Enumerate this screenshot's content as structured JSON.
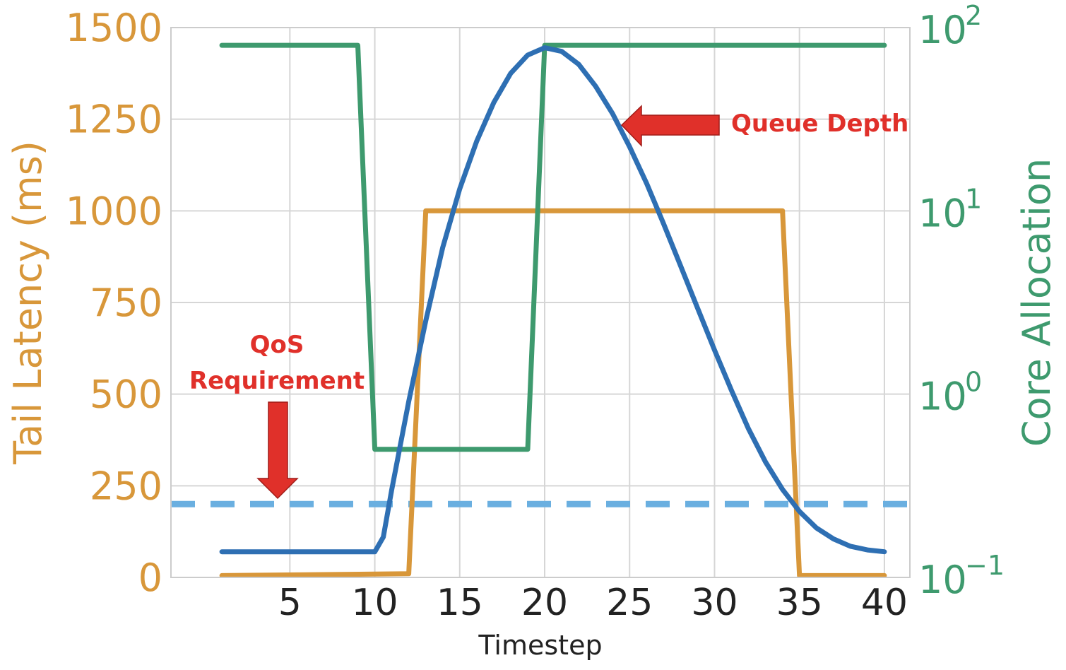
{
  "chart_data": {
    "type": "line",
    "title": "",
    "xlabel": "Timestep",
    "ylabel_left": "Tail Latency (ms)",
    "ylabel_right": "Core Allocation",
    "x_ticks": [
      5,
      10,
      15,
      20,
      25,
      30,
      35,
      40
    ],
    "x_range": [
      -2,
      41.5
    ],
    "y_left_ticks": [
      0,
      250,
      500,
      750,
      1000,
      1250,
      1500
    ],
    "y_left_range": [
      0,
      1500
    ],
    "y_right_scale": "log",
    "y_right_ticks": [
      {
        "base": "10",
        "exp": "2",
        "value": 100
      },
      {
        "base": "10",
        "exp": "1",
        "value": 10
      },
      {
        "base": "10",
        "exp": "0",
        "value": 1
      },
      {
        "base": "10",
        "exp": "−1",
        "value": 0.1
      }
    ],
    "y_right_range": [
      0.1,
      100
    ],
    "grid": true,
    "colors": {
      "latency": "#D8973A",
      "core": "#3E9A6E",
      "queue": "#2E6FB3",
      "qos": "#6AAFE0",
      "annotation": "#E0302A"
    },
    "series": [
      {
        "key": "latency",
        "axis": "left",
        "x": [
          1,
          12,
          13,
          34,
          35,
          40
        ],
        "values": [
          5,
          10,
          1000,
          1000,
          5,
          5
        ]
      },
      {
        "key": "core",
        "axis": "right",
        "x": [
          1,
          9,
          10,
          19,
          20,
          40
        ],
        "values": [
          80,
          80,
          0.5,
          0.5,
          80,
          80
        ]
      },
      {
        "key": "queue",
        "axis": "left",
        "x": [
          1,
          10,
          10.5,
          11,
          12,
          13,
          14,
          15,
          16,
          17,
          18,
          19,
          20,
          21,
          22,
          23,
          24,
          25,
          26,
          27,
          28,
          29,
          30,
          31,
          32,
          33,
          34,
          35,
          36,
          37,
          38,
          39,
          40
        ],
        "values": [
          70,
          70,
          110,
          240,
          480,
          700,
          900,
          1060,
          1190,
          1295,
          1375,
          1425,
          1445,
          1435,
          1400,
          1340,
          1265,
          1175,
          1075,
          965,
          850,
          735,
          620,
          510,
          405,
          315,
          240,
          180,
          135,
          105,
          85,
          75,
          70
        ]
      },
      {
        "key": "qos",
        "axis": "left",
        "x": [
          -2,
          41.5
        ],
        "values": [
          200,
          200
        ]
      }
    ],
    "annotations": {
      "qos_line1": "QoS",
      "qos_line2": "Requirement",
      "queue_depth": "Queue Depth"
    }
  }
}
